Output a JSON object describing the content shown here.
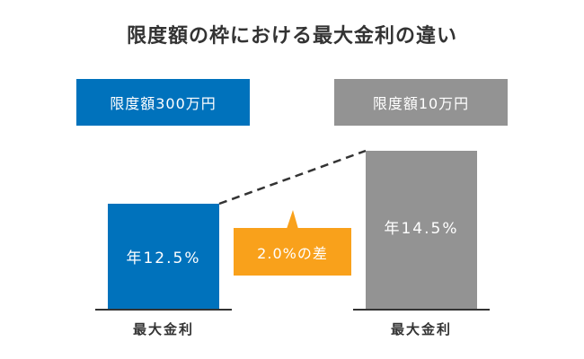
{
  "chart_data": {
    "type": "bar",
    "title": "限度額の枠における最大金利の違い",
    "categories": [
      "限度額300万円",
      "限度額10万円"
    ],
    "values": [
      12.5,
      14.5
    ],
    "value_labels": [
      "年12.5%",
      "年14.5%"
    ],
    "xlabel_each": [
      "最大金利",
      "最大金利"
    ],
    "difference_label": "2.0%の差",
    "colors": {
      "left": "#0072bc",
      "right": "#939393",
      "difference": "#f9a11b",
      "text": "#333333"
    }
  }
}
